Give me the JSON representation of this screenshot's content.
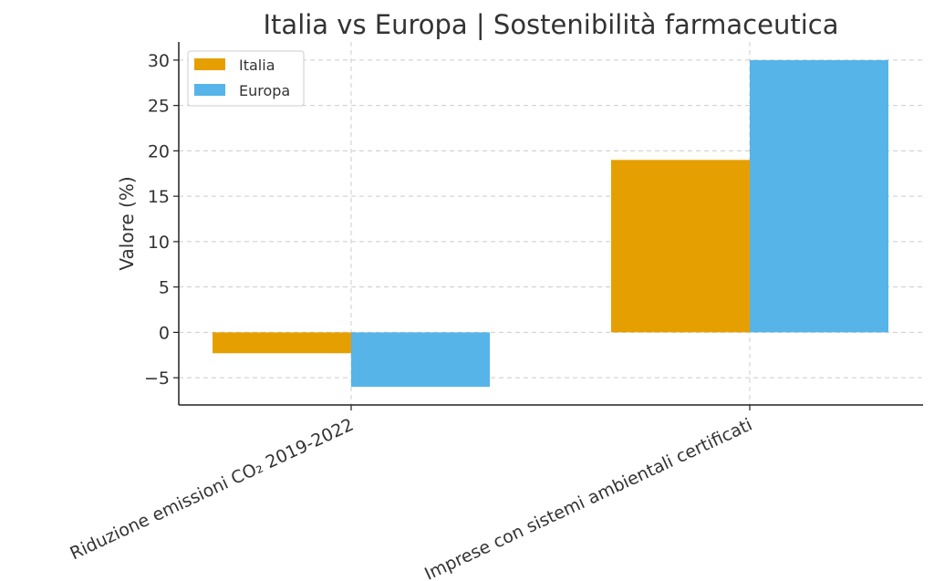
{
  "chart_data": {
    "type": "bar",
    "title": "Italia vs Europa | Sostenibilità farmaceutica",
    "ylabel": "Valore (%)",
    "xlabel": "",
    "categories": [
      "Riduzione emissioni CO₂ 2019-2022",
      "Imprese con sistemi ambientali certificati"
    ],
    "series": [
      {
        "name": "Italia",
        "values": [
          -2.3,
          19
        ],
        "color": "#E69F00"
      },
      {
        "name": "Europa",
        "values": [
          -6,
          30
        ],
        "color": "#56B4E9"
      }
    ],
    "ylim": [
      -8,
      32
    ],
    "yticks": [
      -5,
      0,
      5,
      10,
      15,
      20,
      25,
      30
    ],
    "grid": true,
    "legend_position": "top-left"
  }
}
